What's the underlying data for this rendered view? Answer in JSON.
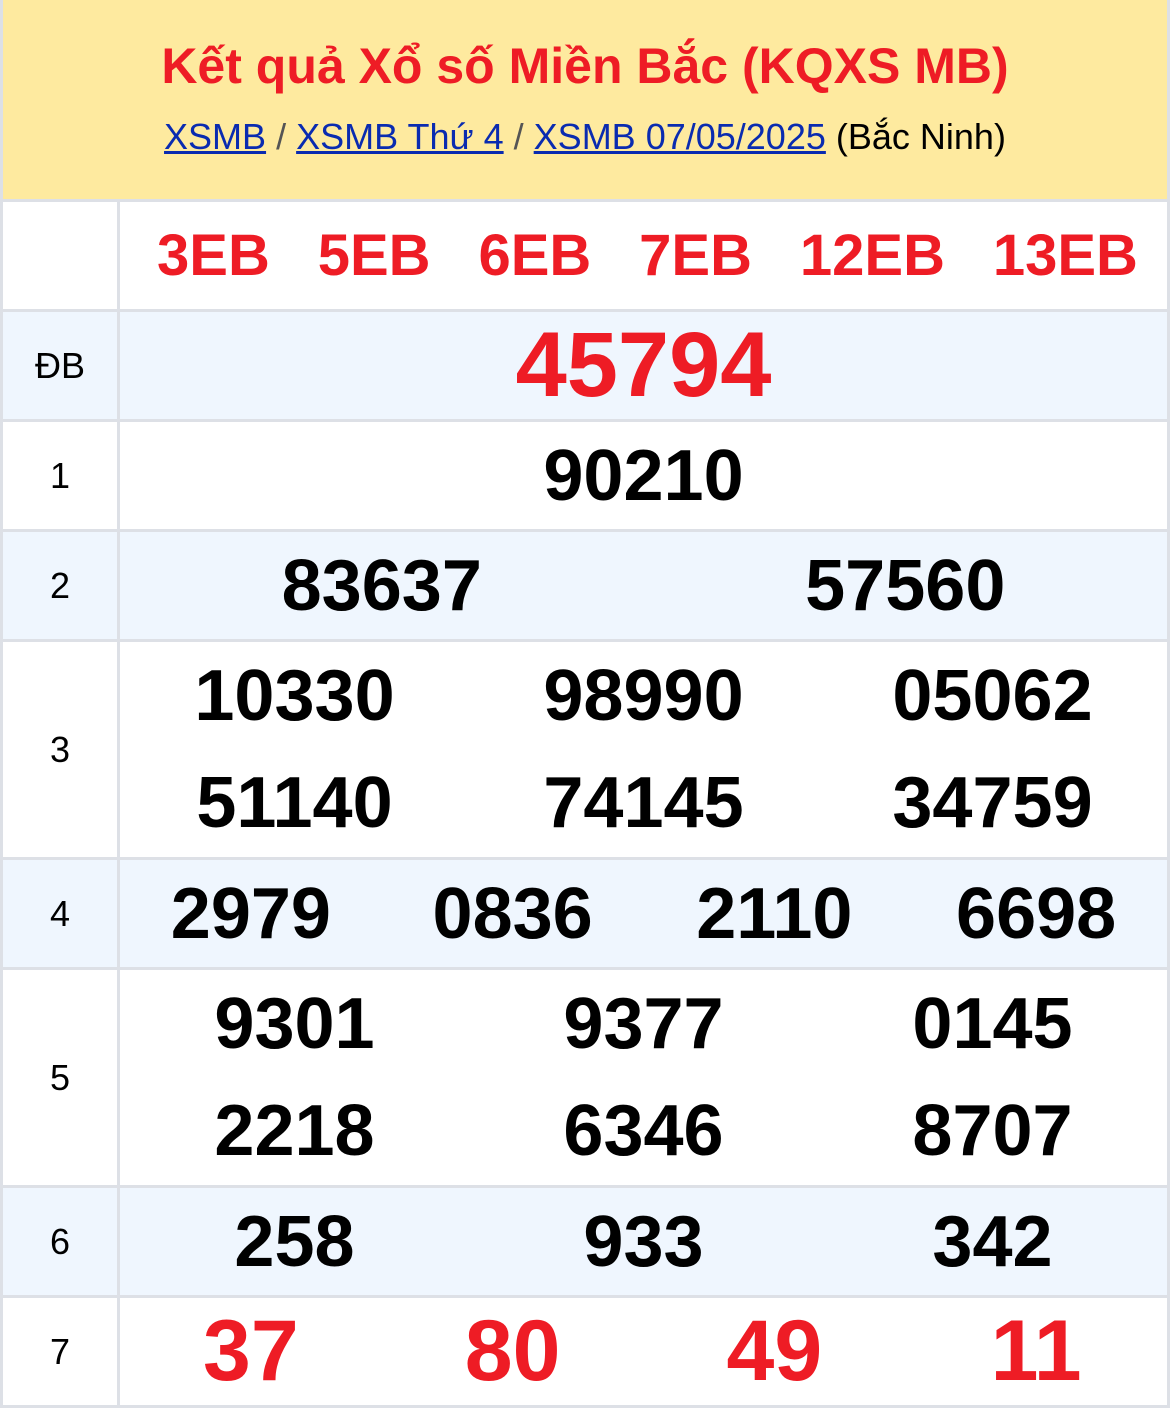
{
  "header": {
    "title": "Kết quả Xổ số Miền Bắc (KQXS MB)",
    "breadcrumb": [
      {
        "label": "XSMB"
      },
      {
        "label": "XSMB Thứ 4"
      },
      {
        "label": "XSMB 07/05/2025"
      }
    ],
    "separator": "/",
    "province": "(Bắc Ninh)"
  },
  "codes": [
    "3EB",
    "5EB",
    "6EB",
    "7EB",
    "12EB",
    "13EB"
  ],
  "prizes": {
    "db": {
      "label": "ĐB",
      "numbers": [
        "45794"
      ]
    },
    "g1": {
      "label": "1",
      "numbers": [
        "90210"
      ]
    },
    "g2": {
      "label": "2",
      "numbers": [
        "83637",
        "57560"
      ]
    },
    "g3": {
      "label": "3",
      "numbers": [
        "10330",
        "98990",
        "05062",
        "51140",
        "74145",
        "34759"
      ]
    },
    "g4": {
      "label": "4",
      "numbers": [
        "2979",
        "0836",
        "2110",
        "6698"
      ]
    },
    "g5": {
      "label": "5",
      "numbers": [
        "9301",
        "9377",
        "0145",
        "2218",
        "6346",
        "8707"
      ]
    },
    "g6": {
      "label": "6",
      "numbers": [
        "258",
        "933",
        "342"
      ]
    },
    "g7": {
      "label": "7",
      "numbers": [
        "37",
        "80",
        "49",
        "11"
      ]
    }
  },
  "colors": {
    "accent_red": "#ee1c25",
    "header_bg": "#feea9f",
    "link": "#0a2bb0",
    "alt_row": "#eff6fe"
  }
}
